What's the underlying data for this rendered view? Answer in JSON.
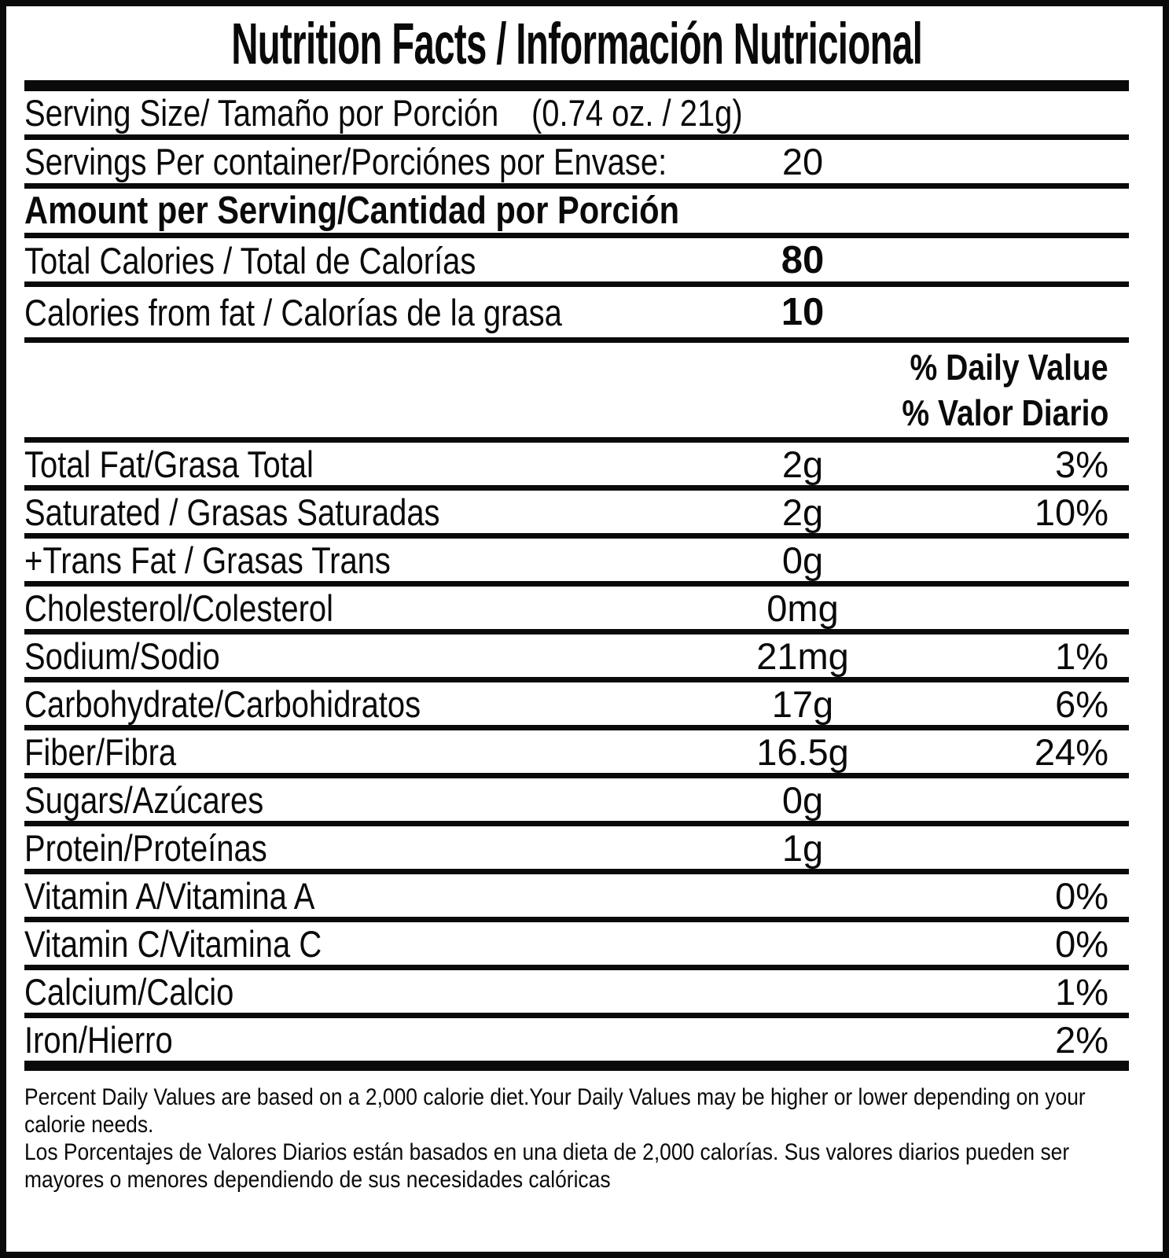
{
  "title": "Nutrition Facts / Información Nutricional",
  "serving": {
    "size_label": "Serving Size/ Tamaño por Porción",
    "size_value": "(0.74 oz. / 21g)",
    "per_container_label": "Servings Per container/Porciónes por Envase:",
    "per_container_value": "20"
  },
  "amount_header": "Amount per Serving/Cantidad por Porción",
  "calorie_rows": [
    {
      "label": "Total Calories / Total de Calorías",
      "value": "80"
    },
    {
      "label": "Calories from fat / Calorías de la grasa",
      "value": "10"
    }
  ],
  "daily_value_header": {
    "en": "% Daily Value",
    "es": "% Valor Diario"
  },
  "nutrient_rows": [
    {
      "label": "Total Fat/Grasa Total",
      "value": "2g",
      "dv": "3%"
    },
    {
      "label": "Saturated / Grasas Saturadas",
      "value": "2g",
      "dv": "10%"
    },
    {
      "label": "+Trans Fat / Grasas Trans",
      "value": "0g",
      "dv": ""
    },
    {
      "label": "Cholesterol/Colesterol",
      "value": "0mg",
      "dv": ""
    },
    {
      "label": "Sodium/Sodio",
      "value": "21mg",
      "dv": "1%"
    },
    {
      "label": "Carbohydrate/Carbohidratos",
      "value": "17g",
      "dv": "6%"
    },
    {
      "label": "Fiber/Fibra",
      "value": "16.5g",
      "dv": "24%"
    },
    {
      "label": "Sugars/Azúcares",
      "value": "0g",
      "dv": ""
    },
    {
      "label": "Protein/Proteínas",
      "value": "1g",
      "dv": ""
    },
    {
      "label": "Vitamin A/Vitamina A",
      "value": "",
      "dv": "0%"
    },
    {
      "label": "Vitamin C/Vitamina C",
      "value": "",
      "dv": "0%"
    },
    {
      "label": "Calcium/Calcio",
      "value": "",
      "dv": "1%"
    },
    {
      "label": "Iron/Hierro",
      "value": "",
      "dv": "2%"
    }
  ],
  "footnote": {
    "en": "Percent Daily Values are based on a 2,000 calorie diet.Your Daily Values may be higher or lower depending on your calorie needs.",
    "es": "Los Porcentajes de Valores Diarios están basados en una dieta de 2,000 calorías. Sus valores diarios pueden ser mayores o menores dependiendo de sus necesidades calóricas"
  },
  "colors": {
    "ink": "#0a0a0a",
    "background": "#ffffff"
  }
}
